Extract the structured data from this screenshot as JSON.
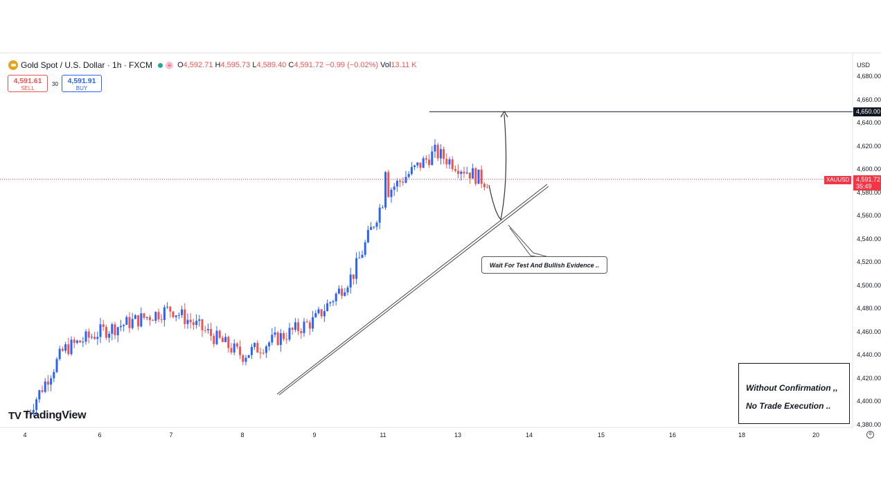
{
  "header": {
    "title": "Gold Spot / U.S. Dollar · 1h · FXCM",
    "ohlc": {
      "o_label": "O",
      "o": "4,592.71",
      "h_label": "H",
      "h": "4,595.73",
      "l_label": "L",
      "l": "4,589.40",
      "c_label": "C",
      "c": "4,591.72",
      "change": "−0.99 (−0.02%)",
      "vol_label": "Vol",
      "vol": "13.11 K"
    }
  },
  "trade": {
    "sell_price": "4,591.61",
    "sell_label": "SELL",
    "spread": "30",
    "buy_price": "4,591.91",
    "buy_label": "BUY"
  },
  "logo": {
    "text": "TradingView"
  },
  "axis": {
    "currency": "USD",
    "level_label": "4,650.00",
    "symbol_tag": "XAUUSD",
    "price_label": "4,591.72",
    "countdown": "35:49",
    "y_ticks": [
      "4,680.00",
      "4,660.00",
      "4,640.00",
      "4,620.00",
      "4,600.00",
      "4,580.00",
      "4,560.00",
      "4,540.00",
      "4,520.00",
      "4,500.00",
      "4,480.00",
      "4,460.00",
      "4,440.00",
      "4,420.00",
      "4,400.00",
      "4,380.00"
    ],
    "x_ticks": [
      "4",
      "6",
      "7",
      "8",
      "9",
      "11",
      "13",
      "14",
      "15",
      "16",
      "18",
      "20"
    ]
  },
  "annotations": {
    "callout": "Wait For Test And Bullish Evidence ..",
    "note_line1": "Without Confirmation ,,",
    "note_line2": "No Trade Execution .."
  },
  "colors": {
    "up": "#2962ff",
    "down": "#ef5350",
    "level": "#131722",
    "trendline": "#444444"
  },
  "chart_data": {
    "type": "candlestick",
    "symbol": "XAUUSD",
    "ylim": [
      4370,
      4690
    ],
    "resistance_level": 4650,
    "current_price": 4591.72,
    "anchors": [
      {
        "day": "4",
        "close": 4390
      },
      {
        "day": "5",
        "close": 4445
      },
      {
        "day": "6",
        "close": 4460
      },
      {
        "day": "7",
        "close": 4480
      },
      {
        "day": "8",
        "close": 4440
      },
      {
        "day": "9",
        "close": 4470
      },
      {
        "day": "10",
        "close": 4510
      },
      {
        "day": "11",
        "close": 4580
      },
      {
        "day": "12",
        "close": 4615
      },
      {
        "day": "13",
        "close": 4590
      }
    ]
  }
}
